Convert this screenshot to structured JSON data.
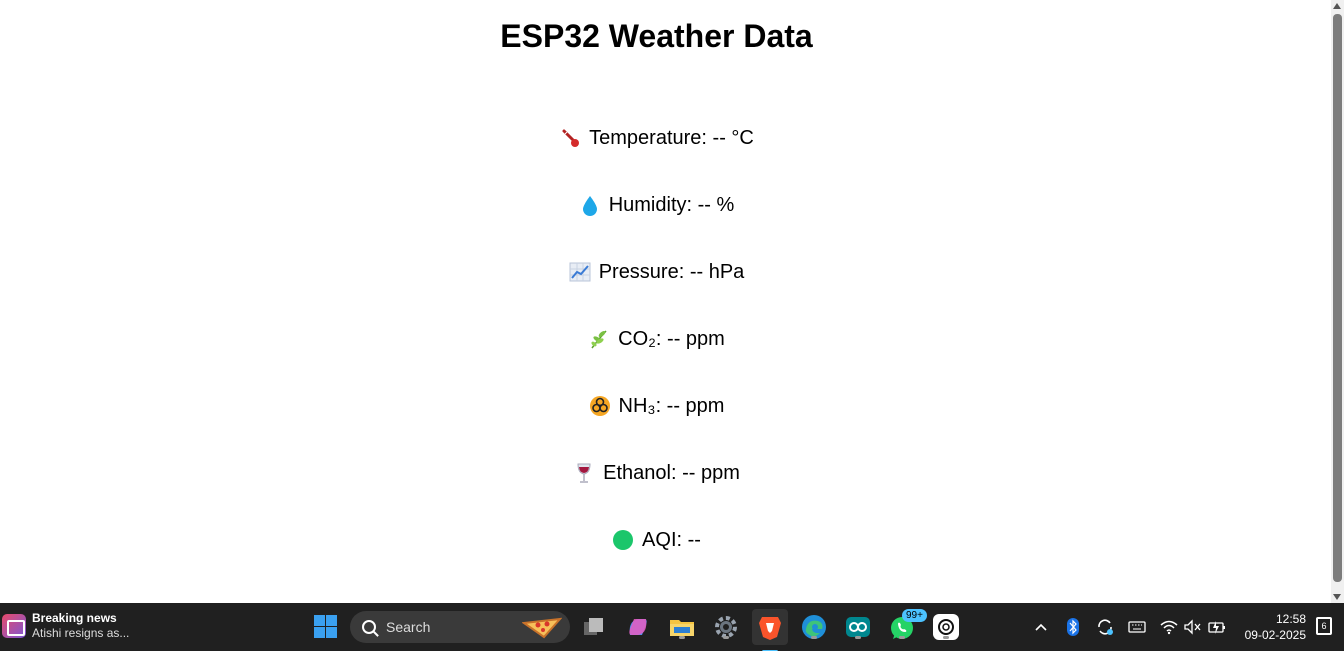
{
  "page": {
    "title": "ESP32 Weather Data",
    "readings": [
      {
        "icon": "thermometer-icon",
        "label": "Temperature: -- °C"
      },
      {
        "icon": "droplet-icon",
        "label": "Humidity: -- %"
      },
      {
        "icon": "chart-increasing-icon",
        "label": "Pressure: -- hPa"
      },
      {
        "icon": "herb-icon",
        "label": "CO₂: -- ppm"
      },
      {
        "icon": "biohazard-icon",
        "label": "NH₃: -- ppm"
      },
      {
        "icon": "wine-glass-icon",
        "label": "Ethanol: -- ppm"
      },
      {
        "icon": "green-circle-icon",
        "label": "AQI: --"
      }
    ]
  },
  "taskbar": {
    "news_title": "Breaking news",
    "news_subtitle": "Atishi resigns as...",
    "search_placeholder": "Search",
    "whatsapp_badge": "99+",
    "time": "12:58",
    "date": "09-02-2025",
    "notification_count": "6"
  },
  "colors": {
    "taskbar": "#202020",
    "accent": "#4cc2ff",
    "aqi_good": "#1bc66b"
  }
}
